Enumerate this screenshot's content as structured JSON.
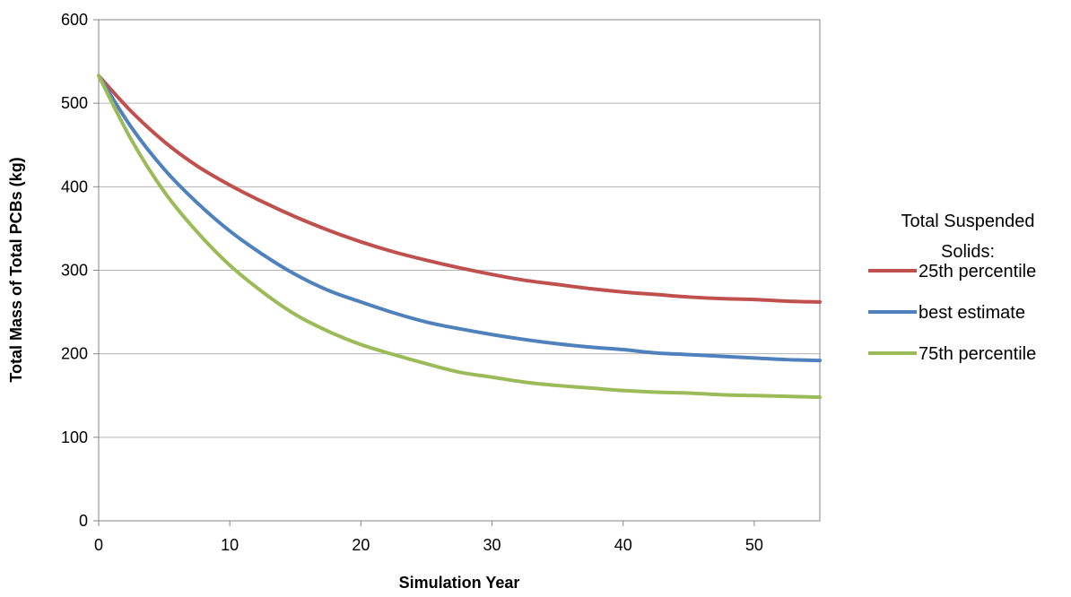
{
  "chart_data": {
    "type": "line",
    "title": "",
    "xlabel": "Simulation Year",
    "ylabel": "Total Mass of Total PCBs (kg)",
    "xlim": [
      0,
      55
    ],
    "ylim": [
      0,
      600
    ],
    "xticks": [
      0,
      10,
      20,
      30,
      40,
      50
    ],
    "yticks": [
      0,
      100,
      200,
      300,
      400,
      500,
      600
    ],
    "grid": "horizontal",
    "legend": {
      "title_lines": [
        "Total Suspended",
        "Solids:"
      ],
      "placement": "right"
    },
    "x": [
      0,
      2.5,
      5,
      7.5,
      10,
      12.5,
      15,
      17.5,
      20,
      22.5,
      25,
      27.5,
      30,
      32.5,
      35,
      37.5,
      40,
      42.5,
      45,
      47.5,
      50,
      52.5,
      55
    ],
    "series": [
      {
        "name": "25th percentile",
        "color": "#c0504d",
        "values": [
          533,
          490,
          454,
          425,
          402,
          382,
          364,
          348,
          334,
          322,
          312,
          303,
          295,
          288,
          283,
          278,
          274,
          271,
          268,
          266,
          265,
          263,
          262
        ]
      },
      {
        "name": "best estimate",
        "color": "#4f81bd",
        "values": [
          533,
          471,
          421,
          381,
          347,
          319,
          295,
          276,
          262,
          249,
          238,
          230,
          223,
          217,
          212,
          208,
          205,
          201,
          199,
          197,
          195,
          193,
          192
        ]
      },
      {
        "name": "75th percentile",
        "color": "#9bbb59",
        "values": [
          533,
          456,
          394,
          346,
          306,
          274,
          247,
          227,
          211,
          199,
          188,
          178,
          172,
          166,
          162,
          159,
          156,
          154,
          153,
          151,
          150,
          149,
          148
        ]
      }
    ]
  }
}
